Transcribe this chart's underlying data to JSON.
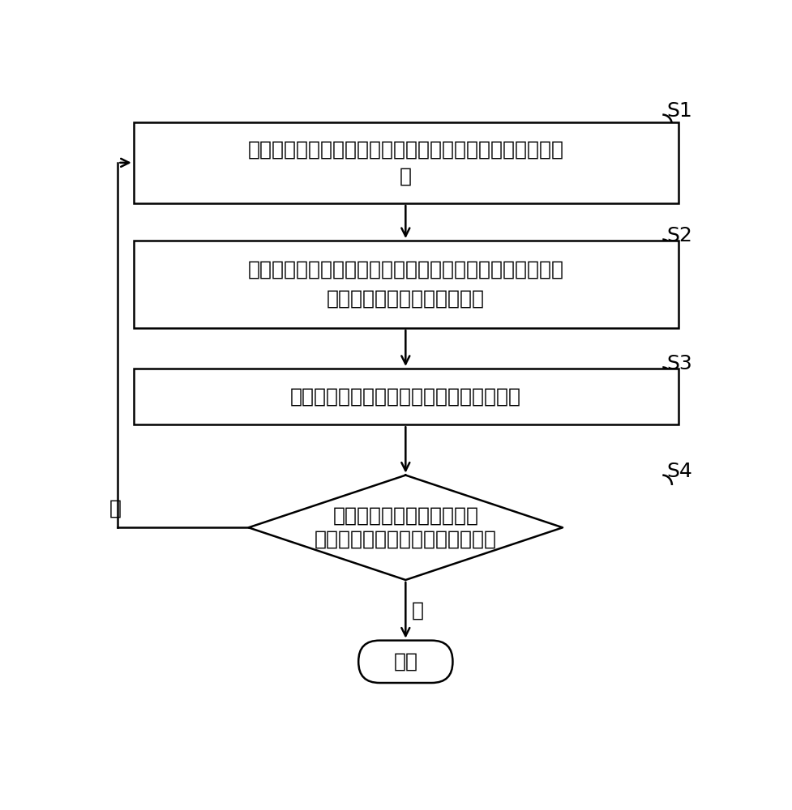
{
  "bg_color": "#ffffff",
  "box_color": "#ffffff",
  "box_edge_color": "#000000",
  "arrow_color": "#000000",
  "text_color": "#000000",
  "step_labels": [
    "S1",
    "S2",
    "S3",
    "S4"
  ],
  "box1_line1": "将滤波器当前的孔参数和指标值输入至预先训练的策略网络",
  "box1_line2": "中",
  "box2_line1": "所述策略网络根据所述滤波器当前的孔参数和指标值，确定",
  "box2_line2": "所述滤波器的待打磨的目标孔",
  "box3_text": "控制机械臂对所述滤波器的目标孔进行打磨",
  "diamond_line1": "根据打磨后的所述滤波器的",
  "diamond_line2": "指标值，判断所述滤波器是否合格",
  "end_text": "结束",
  "yes_label": "是",
  "no_label": "否",
  "font_size": 18,
  "label_font_size": 18,
  "step_font_size": 18
}
